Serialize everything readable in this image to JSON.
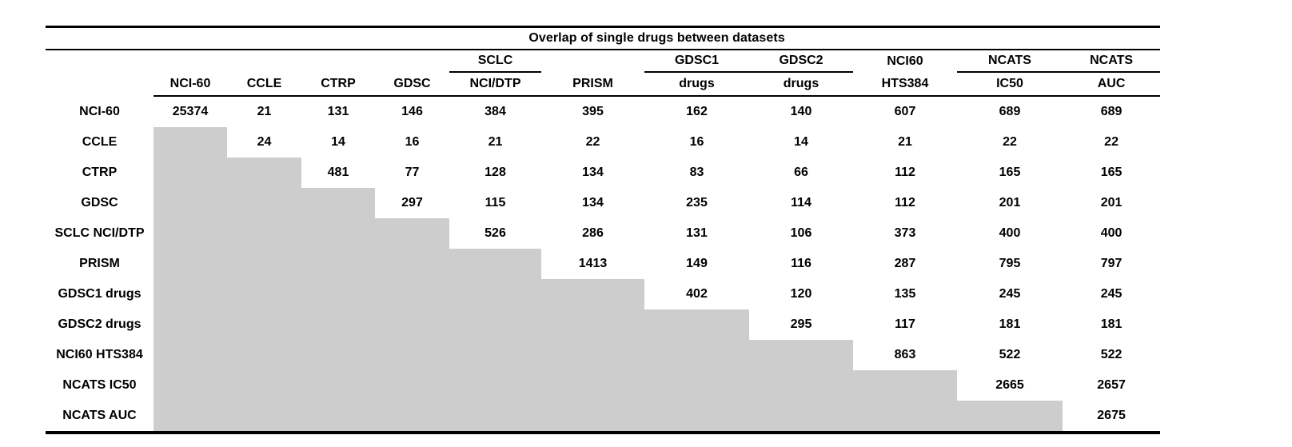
{
  "figure": {
    "title": "Overlap of single drugs between datasets"
  },
  "table": {
    "shade_color": "#cdcdcd",
    "line_color": "#000000",
    "columns": [
      {
        "top": "",
        "bottom": "NCI-60",
        "top_underline": false
      },
      {
        "top": "",
        "bottom": "CCLE",
        "top_underline": false
      },
      {
        "top": "",
        "bottom": "CTRP",
        "top_underline": false
      },
      {
        "top": "",
        "bottom": "GDSC",
        "top_underline": false
      },
      {
        "top": "SCLC",
        "bottom": "NCI/DTP",
        "top_underline": true
      },
      {
        "top": "",
        "bottom": "PRISM",
        "top_underline": false
      },
      {
        "top": "GDSC1",
        "bottom": "drugs",
        "top_underline": true
      },
      {
        "top": "GDSC2",
        "bottom": "drugs",
        "top_underline": true
      },
      {
        "top": "NCI60",
        "bottom": "HTS384",
        "top_underline": false
      },
      {
        "top": "NCATS",
        "bottom": "IC50",
        "top_underline": true
      },
      {
        "top": "NCATS",
        "bottom": "AUC",
        "top_underline": true
      }
    ],
    "rows": [
      {
        "label": "NCI-60",
        "values": [
          "25374",
          "21",
          "131",
          "146",
          "384",
          "395",
          "162",
          "140",
          "607",
          "689",
          "689"
        ]
      },
      {
        "label": "CCLE",
        "values": [
          "24",
          "14",
          "16",
          "21",
          "22",
          "16",
          "14",
          "21",
          "22",
          "22"
        ]
      },
      {
        "label": "CTRP",
        "values": [
          "481",
          "77",
          "128",
          "134",
          "83",
          "66",
          "112",
          "165",
          "165"
        ]
      },
      {
        "label": "GDSC",
        "values": [
          "297",
          "115",
          "134",
          "235",
          "114",
          "112",
          "201",
          "201"
        ]
      },
      {
        "label": "SCLC NCI/DTP",
        "values": [
          "526",
          "286",
          "131",
          "106",
          "373",
          "400",
          "400"
        ]
      },
      {
        "label": "PRISM",
        "values": [
          "1413",
          "149",
          "116",
          "287",
          "795",
          "797"
        ]
      },
      {
        "label": "GDSC1 drugs",
        "values": [
          "402",
          "120",
          "135",
          "245",
          "245"
        ]
      },
      {
        "label": "GDSC2 drugs",
        "values": [
          "295",
          "117",
          "181",
          "181"
        ]
      },
      {
        "label": "NCI60 HTS384",
        "values": [
          "863",
          "522",
          "522"
        ]
      },
      {
        "label": "NCATS IC50",
        "values": [
          "2665",
          "2657"
        ]
      },
      {
        "label": "NCATS AUC",
        "values": [
          "2675"
        ]
      }
    ]
  }
}
